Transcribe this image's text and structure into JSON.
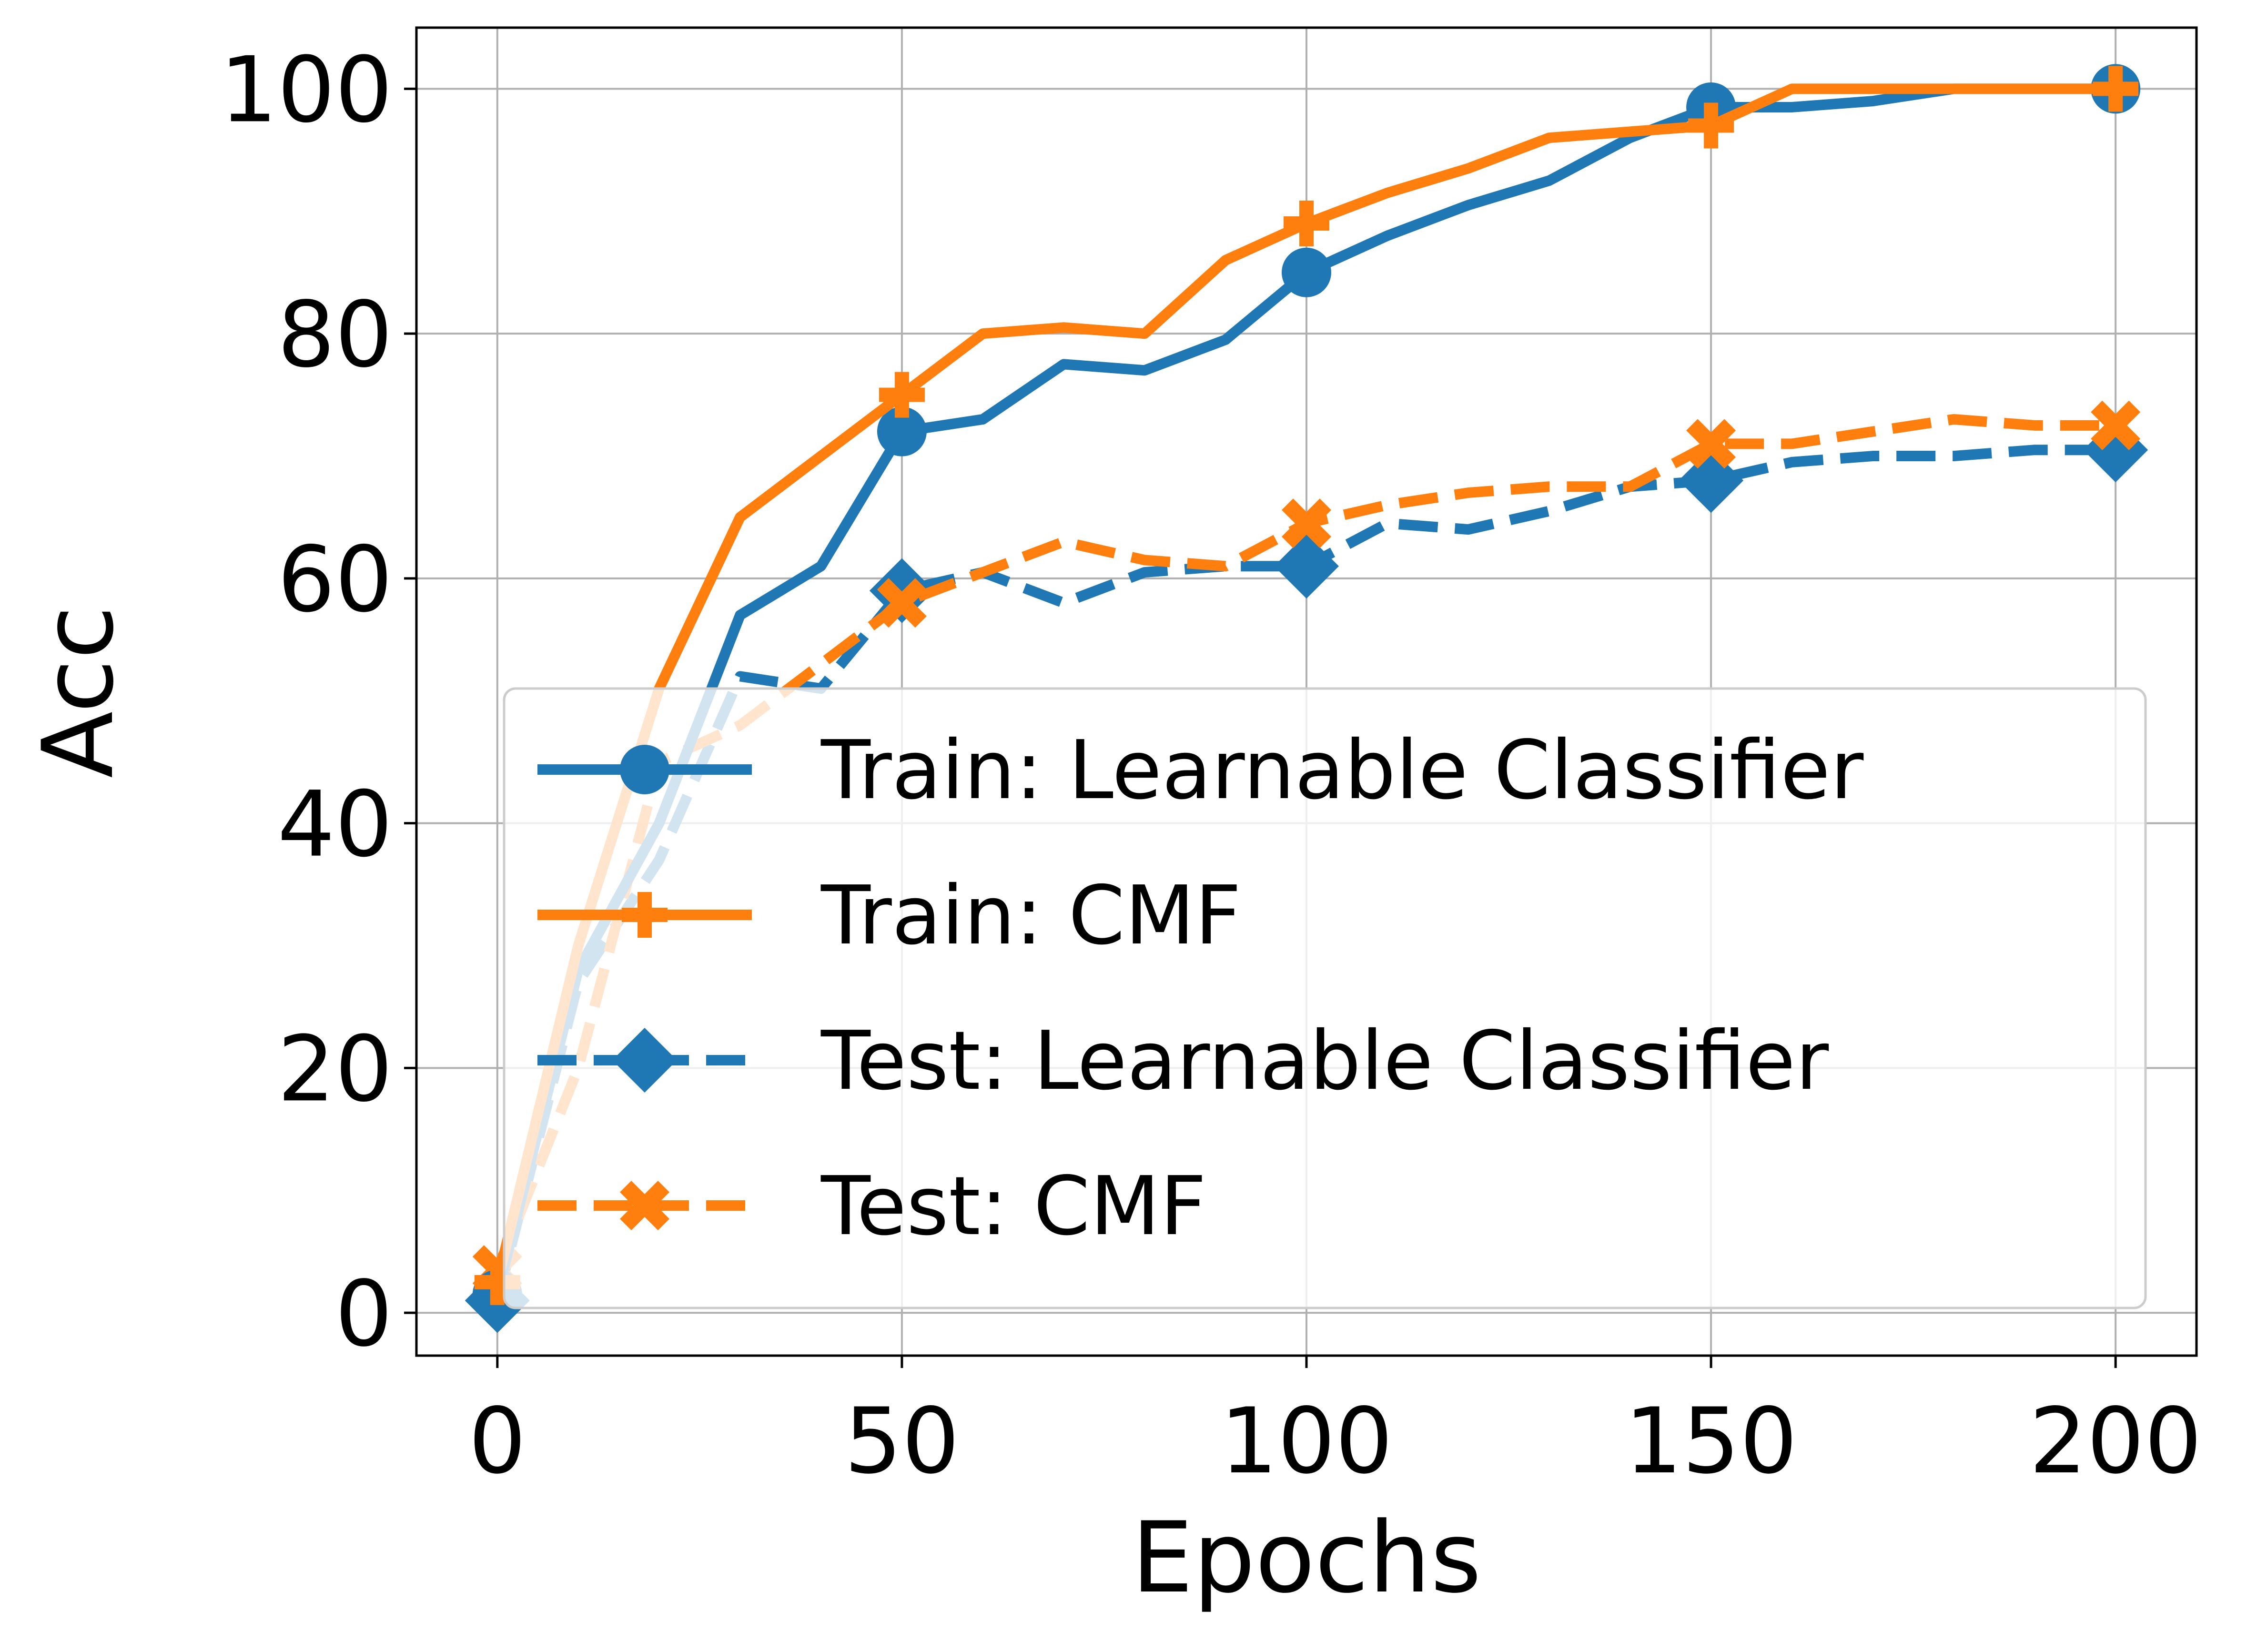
{
  "chart_data": {
    "type": "line",
    "xlabel": "Epochs",
    "ylabel": "Acc",
    "xlim": [
      -10,
      210
    ],
    "ylim": [
      -3.5,
      105
    ],
    "xticks": [
      0,
      50,
      100,
      150,
      200
    ],
    "yticks": [
      0,
      20,
      40,
      60,
      80,
      100
    ],
    "grid": true,
    "legend_position": "lower-right",
    "x": [
      0,
      10,
      20,
      30,
      40,
      50,
      60,
      70,
      80,
      90,
      100,
      110,
      120,
      130,
      140,
      150,
      160,
      170,
      180,
      190,
      200
    ],
    "series": [
      {
        "name": "Train: Learnable Classifier",
        "color": "#1f77b4",
        "linestyle": "solid",
        "marker": "circle",
        "values": [
          1.5,
          28,
          40,
          57,
          61,
          72,
          73,
          77.5,
          77,
          79.5,
          85,
          88,
          90.5,
          92.5,
          96,
          98.5,
          98.5,
          99,
          100,
          100,
          100
        ]
      },
      {
        "name": "Train: CMF",
        "color": "#ff7f0e",
        "linestyle": "solid",
        "marker": "plus",
        "values": [
          2.5,
          30,
          51,
          65,
          70,
          75,
          80,
          80.5,
          80,
          86,
          89,
          91.5,
          93.5,
          96,
          96.5,
          97,
          100,
          100,
          100,
          100,
          100
        ]
      },
      {
        "name": "Test: Learnable Classifier",
        "color": "#1f77b4",
        "linestyle": "dashed",
        "marker": "diamond",
        "values": [
          1,
          27,
          37,
          52,
          51,
          59,
          60.5,
          58,
          60.5,
          61,
          61,
          64.5,
          64,
          65.5,
          67.5,
          68,
          69.5,
          70,
          70,
          70.5,
          70.5
        ]
      },
      {
        "name": "Test: CMF",
        "color": "#ff7f0e",
        "linestyle": "dashed",
        "marker": "x",
        "values": [
          3.5,
          20,
          45,
          48,
          53,
          58,
          60.5,
          63,
          61.5,
          61,
          64.5,
          66,
          67,
          67.5,
          67.5,
          71,
          71,
          72,
          73,
          72.5,
          72.5
        ]
      }
    ]
  }
}
